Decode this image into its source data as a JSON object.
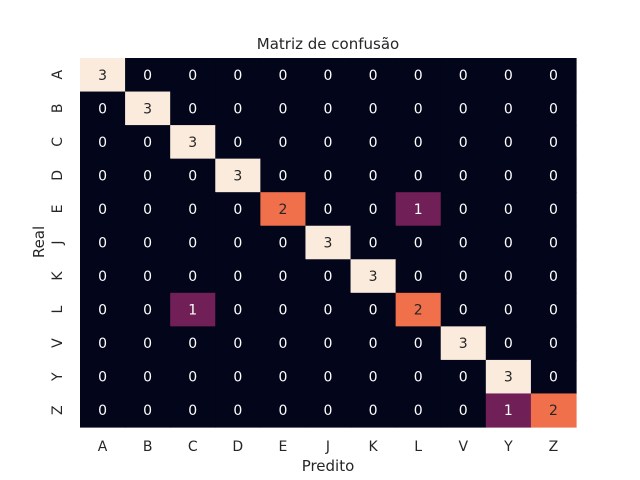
{
  "chart_data": {
    "type": "heatmap",
    "title": "Matriz de confusão",
    "xlabel": "Predito",
    "ylabel": "Real",
    "x_categories": [
      "A",
      "B",
      "C",
      "D",
      "E",
      "J",
      "K",
      "L",
      "V",
      "Y",
      "Z"
    ],
    "y_categories": [
      "A",
      "B",
      "C",
      "D",
      "E",
      "J",
      "K",
      "L",
      "V",
      "Y",
      "Z"
    ],
    "values": [
      [
        3,
        0,
        0,
        0,
        0,
        0,
        0,
        0,
        0,
        0,
        0
      ],
      [
        0,
        3,
        0,
        0,
        0,
        0,
        0,
        0,
        0,
        0,
        0
      ],
      [
        0,
        0,
        3,
        0,
        0,
        0,
        0,
        0,
        0,
        0,
        0
      ],
      [
        0,
        0,
        0,
        3,
        0,
        0,
        0,
        0,
        0,
        0,
        0
      ],
      [
        0,
        0,
        0,
        0,
        2,
        0,
        0,
        1,
        0,
        0,
        0
      ],
      [
        0,
        0,
        0,
        0,
        0,
        3,
        0,
        0,
        0,
        0,
        0
      ],
      [
        0,
        0,
        0,
        0,
        0,
        0,
        3,
        0,
        0,
        0,
        0
      ],
      [
        0,
        0,
        1,
        0,
        0,
        0,
        0,
        2,
        0,
        0,
        0
      ],
      [
        0,
        0,
        0,
        0,
        0,
        0,
        0,
        0,
        3,
        0,
        0
      ],
      [
        0,
        0,
        0,
        0,
        0,
        0,
        0,
        0,
        0,
        3,
        0
      ],
      [
        0,
        0,
        0,
        0,
        0,
        0,
        0,
        0,
        0,
        1,
        2
      ]
    ],
    "vmin": 0,
    "vmax": 3,
    "colormap": [
      "#03051a",
      "#701f57",
      "#f0704c",
      "#faebdd"
    ],
    "colorbar": false,
    "grid": false
  }
}
